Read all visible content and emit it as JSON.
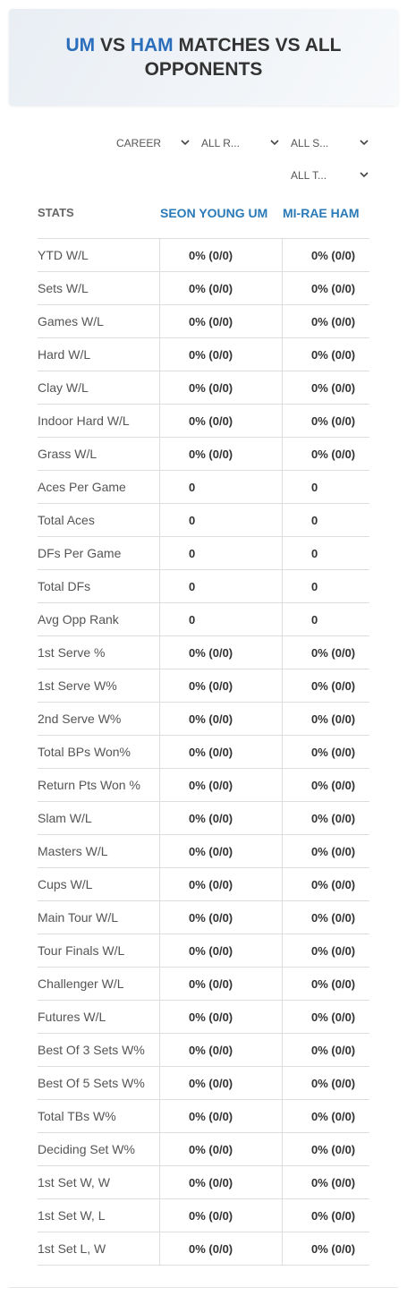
{
  "header": {
    "title": {
      "p1": "UM",
      "vs": "VS",
      "p2": "HAM",
      "rest": "MATCHES VS ALL OPPONENTS"
    }
  },
  "filters": [
    "CAREER",
    "ALL R...",
    "ALL S...",
    "ALL T..."
  ],
  "table": {
    "columns": [
      "STATS",
      "SEON YOUNG UM",
      "MI-RAE HAM"
    ],
    "rows": [
      [
        "YTD W/L",
        "0% (0/0)",
        "0% (0/0)"
      ],
      [
        "Sets W/L",
        "0% (0/0)",
        "0% (0/0)"
      ],
      [
        "Games W/L",
        "0% (0/0)",
        "0% (0/0)"
      ],
      [
        "Hard W/L",
        "0% (0/0)",
        "0% (0/0)"
      ],
      [
        "Clay W/L",
        "0% (0/0)",
        "0% (0/0)"
      ],
      [
        "Indoor Hard W/L",
        "0% (0/0)",
        "0% (0/0)"
      ],
      [
        "Grass W/L",
        "0% (0/0)",
        "0% (0/0)"
      ],
      [
        "Aces Per Game",
        "0",
        "0"
      ],
      [
        "Total Aces",
        "0",
        "0"
      ],
      [
        "DFs Per Game",
        "0",
        "0"
      ],
      [
        "Total DFs",
        "0",
        "0"
      ],
      [
        "Avg Opp Rank",
        "0",
        "0"
      ],
      [
        "1st Serve %",
        "0% (0/0)",
        "0% (0/0)"
      ],
      [
        "1st Serve W%",
        "0% (0/0)",
        "0% (0/0)"
      ],
      [
        "2nd Serve W%",
        "0% (0/0)",
        "0% (0/0)"
      ],
      [
        "Total BPs Won%",
        "0% (0/0)",
        "0% (0/0)"
      ],
      [
        "Return Pts Won %",
        "0% (0/0)",
        "0% (0/0)"
      ],
      [
        "Slam W/L",
        "0% (0/0)",
        "0% (0/0)"
      ],
      [
        "Masters W/L",
        "0% (0/0)",
        "0% (0/0)"
      ],
      [
        "Cups W/L",
        "0% (0/0)",
        "0% (0/0)"
      ],
      [
        "Main Tour W/L",
        "0% (0/0)",
        "0% (0/0)"
      ],
      [
        "Tour Finals W/L",
        "0% (0/0)",
        "0% (0/0)"
      ],
      [
        "Challenger W/L",
        "0% (0/0)",
        "0% (0/0)"
      ],
      [
        "Futures W/L",
        "0% (0/0)",
        "0% (0/0)"
      ],
      [
        "Best Of 3 Sets W%",
        "0% (0/0)",
        "0% (0/0)"
      ],
      [
        "Best Of 5 Sets W%",
        "0% (0/0)",
        "0% (0/0)"
      ],
      [
        "Total TBs W%",
        "0% (0/0)",
        "0% (0/0)"
      ],
      [
        "Deciding Set W%",
        "0% (0/0)",
        "0% (0/0)"
      ],
      [
        "1st Set W, W",
        "0% (0/0)",
        "0% (0/0)"
      ],
      [
        "1st Set W, L",
        "0% (0/0)",
        "0% (0/0)"
      ],
      [
        "1st Set L, W",
        "0% (0/0)",
        "0% (0/0)"
      ]
    ]
  }
}
